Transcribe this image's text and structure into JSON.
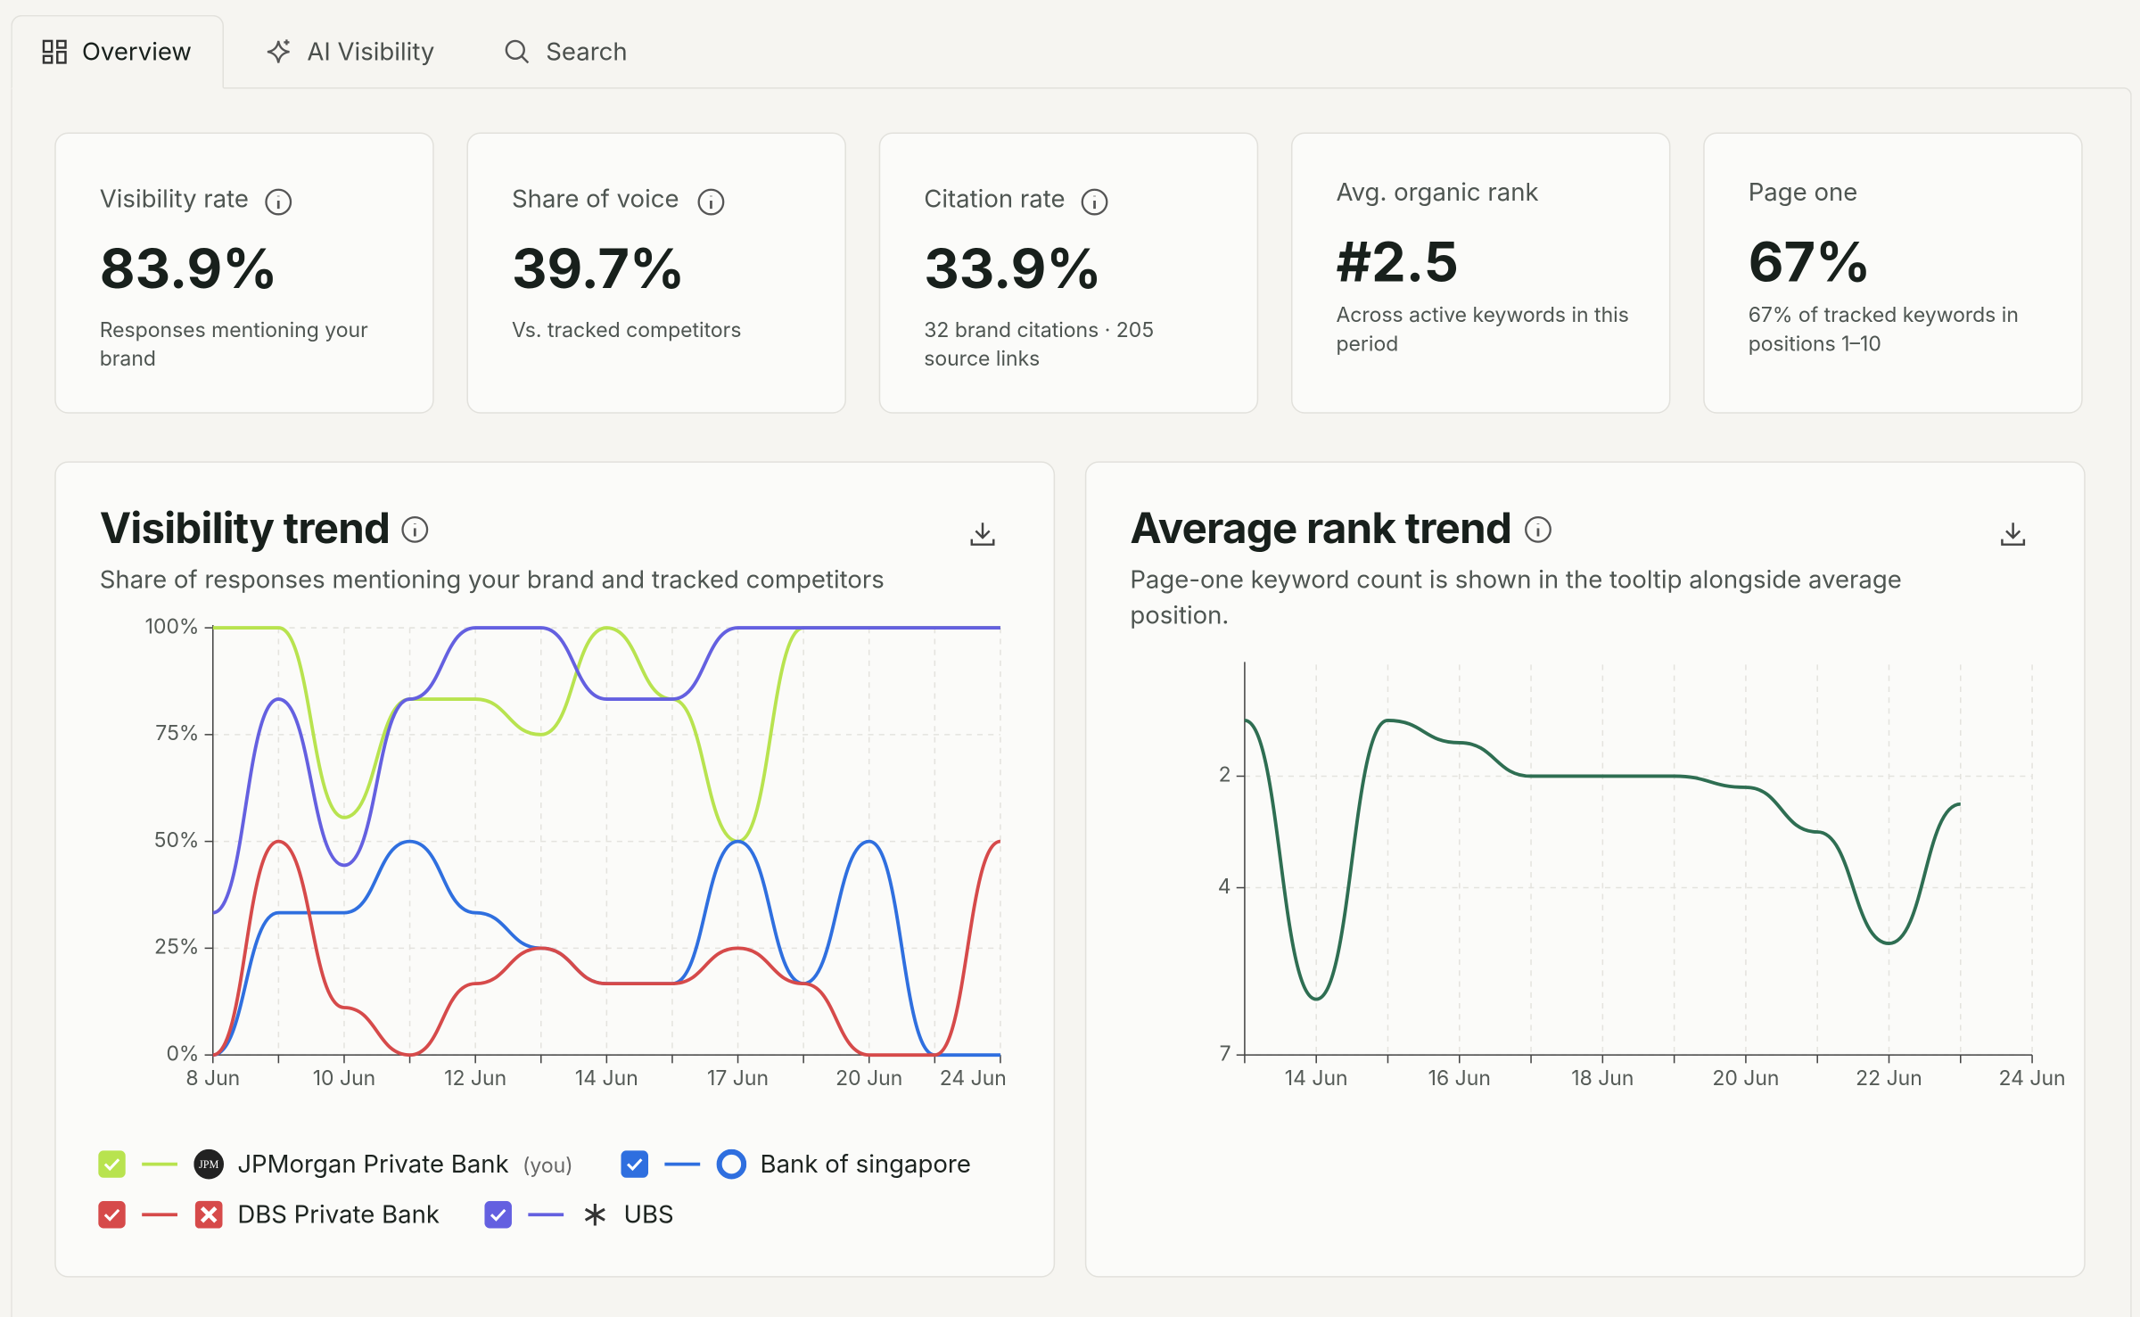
{
  "tabs": [
    "Overview",
    "AI Visibility",
    "Search"
  ],
  "cards": [
    {
      "label": "Visibility rate",
      "value": "83.9%",
      "description": "Responses mentioning your brand"
    },
    {
      "label": "Share of voice",
      "value": "39.7%",
      "description": "Vs. tracked competitors"
    },
    {
      "label": "Citation rate",
      "value": "33.9%",
      "description": "32 brand citations · 205 source links"
    },
    {
      "label": "Avg. organic rank",
      "value": "#2.5",
      "description": "Across active keywords in this period"
    },
    {
      "label": "Page one",
      "value": "67%",
      "description": "67% of tracked keywords in positions 1–10"
    }
  ],
  "chart_data": [
    {
      "type": "line",
      "title": "Visibility trend",
      "subtitle": "Share of responses mentioning your brand and tracked competitors",
      "categories": [
        "8 Jun",
        null,
        "10 Jun",
        null,
        "12 Jun",
        null,
        "14 Jun",
        null,
        "17 Jun",
        null,
        "20 Jun",
        null,
        "24 Jun"
      ],
      "ylim": [
        0,
        100
      ],
      "yticks": [
        {
          "value": 0,
          "label": "0%"
        },
        {
          "value": 25,
          "label": "25%"
        },
        {
          "value": 50,
          "label": "50%"
        },
        {
          "value": 75,
          "label": "75%"
        },
        {
          "value": 100,
          "label": "100%"
        }
      ],
      "grid": true,
      "series": [
        {
          "name": "JPMorgan Private Bank",
          "note": "(you)",
          "logo": "JPM",
          "color": "#b8e34f",
          "values": [
            100,
            100,
            55.6,
            83.3,
            83.3,
            75,
            100,
            83.3,
            50,
            100,
            100,
            100,
            100
          ]
        },
        {
          "name": "Bank of singapore",
          "color": "#2f6fdf",
          "values": [
            0,
            33.3,
            33.3,
            50,
            33.3,
            25,
            16.7,
            16.7,
            50,
            16.7,
            50,
            0,
            0
          ]
        },
        {
          "name": "DBS Private Bank",
          "color": "#d64a4a",
          "values": [
            0,
            50,
            11.1,
            0,
            16.7,
            25,
            16.7,
            16.7,
            25,
            16.7,
            0,
            0,
            50
          ]
        },
        {
          "name": "UBS",
          "color": "#6460e0",
          "values": [
            33.3,
            83.3,
            44.4,
            83.3,
            100,
            100,
            83.3,
            83.3,
            100,
            100,
            100,
            100,
            100
          ]
        }
      ]
    },
    {
      "type": "line",
      "title": "Average rank trend",
      "subtitle": "Page-one keyword count is shown in the tooltip alongside average position.",
      "categories": [
        null,
        "14 Jun",
        null,
        "16 Jun",
        null,
        "18 Jun",
        null,
        "20 Jun",
        null,
        "22 Jun",
        null,
        "24 Jun"
      ],
      "ylim": [
        7,
        0
      ],
      "yticks": [
        2,
        4,
        7
      ],
      "grid": true,
      "series": [
        {
          "color": "#2e6e52",
          "values": [
            1,
            6,
            1,
            1.4,
            2,
            2,
            2,
            2.2,
            3,
            5,
            2.5,
            null
          ]
        }
      ]
    }
  ]
}
